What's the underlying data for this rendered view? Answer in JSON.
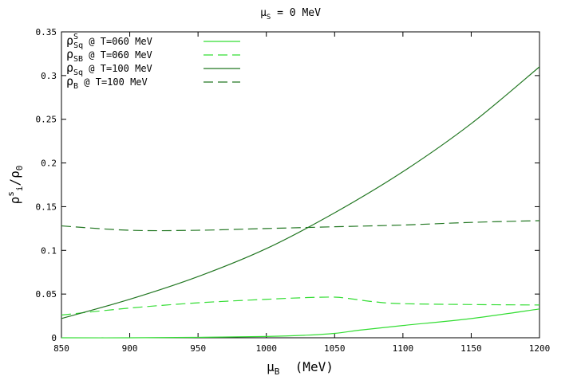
{
  "chart_data": {
    "type": "line",
    "title": "μS = 0 MeV",
    "title_parts": {
      "sym": "μ",
      "sub": "S",
      "rest": " = 0 MeV"
    },
    "xlabel": "μB (MeV)",
    "xlabel_parts": {
      "sym": "μ",
      "sub": "B",
      "rest": "  (MeV)"
    },
    "ylabel": "ρ s i/ρ0",
    "ylabel_parts": {
      "sym": "ρ",
      "sup": "s",
      "sub": "i",
      "rest": "/ρ",
      "sub2": "0"
    },
    "xlim": [
      850,
      1200
    ],
    "ylim": [
      0,
      0.35
    ],
    "x_ticks": [
      "850",
      "900",
      "950",
      "1000",
      "1050",
      "1100",
      "1150",
      "1200"
    ],
    "y_ticks": [
      "0",
      "0.05",
      "0.1",
      "0.15",
      "0.2",
      "0.25",
      "0.3",
      "0.35"
    ],
    "grid": false,
    "legend_position": "top-left",
    "series": [
      {
        "name": "ρSSq @ T=060 MeV",
        "legend": {
          "sym": "ρ",
          "sup": "S",
          "sub": "Sq",
          "rest": " @ T=060 MeV"
        },
        "color": "#33dd33",
        "dash": "solid",
        "x": [
          850,
          900,
          950,
          1000,
          1030,
          1050,
          1070,
          1100,
          1150,
          1200
        ],
        "y": [
          0.0,
          0.0,
          0.0005,
          0.0015,
          0.003,
          0.005,
          0.009,
          0.014,
          0.022,
          0.033
        ]
      },
      {
        "name": "ρSB @ T=060 MeV",
        "legend": {
          "sym": "ρ",
          "sup": "",
          "sub": "SB",
          "rest": " @ T=060 MeV"
        },
        "color": "#33dd33",
        "dash": "dashed",
        "x": [
          850,
          900,
          950,
          1000,
          1030,
          1050,
          1060,
          1080,
          1100,
          1150,
          1200
        ],
        "y": [
          0.026,
          0.034,
          0.04,
          0.044,
          0.046,
          0.0465,
          0.045,
          0.041,
          0.039,
          0.038,
          0.0375
        ]
      },
      {
        "name": "ρSSq @ T=100 MeV",
        "legend": {
          "sym": "ρ",
          "sup": "",
          "sub": "Sq",
          "rest": " @ T=100 MeV"
        },
        "color": "#227722",
        "dash": "solid",
        "x": [
          850,
          900,
          950,
          1000,
          1050,
          1100,
          1150,
          1200
        ],
        "y": [
          0.022,
          0.044,
          0.07,
          0.102,
          0.143,
          0.19,
          0.245,
          0.31
        ]
      },
      {
        "name": "ρB @ T=100 MeV",
        "legend": {
          "sym": "ρ",
          "sup": "",
          "sub": "B",
          "rest": " @ T=100 MeV"
        },
        "color": "#227722",
        "dash": "dashed",
        "x": [
          850,
          900,
          950,
          1000,
          1050,
          1100,
          1150,
          1200
        ],
        "y": [
          0.128,
          0.123,
          0.123,
          0.125,
          0.127,
          0.129,
          0.132,
          0.134
        ]
      }
    ]
  }
}
